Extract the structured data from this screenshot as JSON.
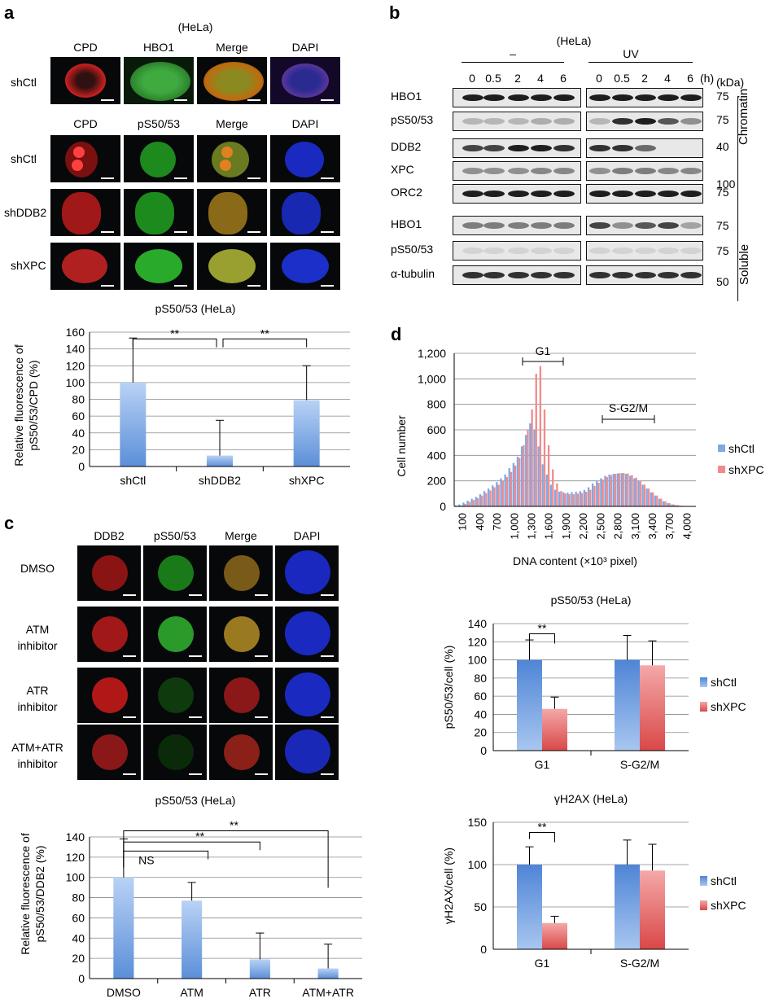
{
  "panel_a": {
    "letter": "a",
    "cell_line": "(HeLa)",
    "top_headers": [
      "CPD",
      "HBO1",
      "Merge",
      "DAPI"
    ],
    "top_rows": [
      "shCtl"
    ],
    "mid_headers": [
      "CPD",
      "pS50/53",
      "Merge",
      "DAPI"
    ],
    "mid_rows": [
      "shCtl",
      "shDDB2",
      "shXPC"
    ]
  },
  "panel_b": {
    "letter": "b",
    "cell_line": "(HeLa)",
    "cond_minus": "–",
    "cond_uv": "UV",
    "time_unit": "(h)",
    "kda_label": "(kDa)",
    "time_points": [
      "0",
      "0.5",
      "2",
      "4",
      "6"
    ],
    "chromatin_rows": [
      "HBO1",
      "pS50/53",
      "DDB2",
      "XPC",
      "ORC2"
    ],
    "soluble_rows": [
      "HBO1",
      "pS50/53",
      "α-tubulin"
    ],
    "chromatin_kda": [
      "75",
      "75",
      "40",
      "100",
      "75"
    ],
    "soluble_kda": [
      "75",
      "75",
      "50"
    ],
    "chromatin_label": "Chromatin",
    "soluble_label": "Soluble"
  },
  "panel_c": {
    "letter": "c",
    "headers": [
      "DDB2",
      "pS50/53",
      "Merge",
      "DAPI"
    ],
    "rows": [
      "DMSO",
      "ATM\ninhibitor",
      "ATR\ninhibitor",
      "ATM+ATR\ninhibitor"
    ]
  },
  "panel_d": {
    "letter": "d"
  },
  "chart_data": [
    {
      "id": "a-bar",
      "type": "bar",
      "title": "pS50/53 (HeLa)",
      "ylabel_line1": "Relative fluorescence of",
      "ylabel_line2": "pS50/53/CPD (%)",
      "categories": [
        "shCtl",
        "shDDB2",
        "shXPC"
      ],
      "values": [
        100,
        13,
        79
      ],
      "errors": [
        53,
        42,
        41
      ],
      "ylim": [
        0,
        160
      ],
      "yticks": [
        0,
        20,
        40,
        60,
        80,
        100,
        120,
        140,
        160
      ],
      "significance": [
        {
          "from": 0,
          "to": 1,
          "label": "**"
        },
        {
          "from": 1,
          "to": 2,
          "label": "**"
        }
      ],
      "colors": {
        "bar_top": "#b9d2f5",
        "bar_bottom": "#5b8fd8"
      }
    },
    {
      "id": "c-bar",
      "type": "bar",
      "title": "pS50/53 (HeLa)",
      "ylabel_line1": "Relative fluorescence of",
      "ylabel_line2": "pS50/53/DDB2 (%)",
      "categories": [
        "DMSO",
        "ATM",
        "ATR",
        "ATM+ATR"
      ],
      "values": [
        100,
        77,
        19,
        10
      ],
      "errors": [
        38,
        18,
        26,
        24
      ],
      "ylim": [
        0,
        140
      ],
      "yticks": [
        0,
        20,
        40,
        60,
        80,
        100,
        120,
        140
      ],
      "significance": [
        {
          "from": 0,
          "to": 1,
          "label": "NS"
        },
        {
          "from": 0,
          "to": 2,
          "label": "**"
        },
        {
          "from": 0,
          "to": 3,
          "label": "**"
        }
      ],
      "colors": {
        "bar_top": "#b9d2f5",
        "bar_bottom": "#5b8fd8"
      }
    },
    {
      "id": "d-histogram",
      "type": "bar",
      "xlabel": "DNA content (×10³ pixel)",
      "ylabel": "Cell number",
      "ylim": [
        0,
        1200
      ],
      "yticks": [
        0,
        200,
        400,
        600,
        800,
        1000,
        1200
      ],
      "ytick_labels": [
        "0",
        "200",
        "400",
        "600",
        "800",
        "1,000",
        "1,200"
      ],
      "xtick_labels": [
        "100",
        "400",
        "700",
        "1,000",
        "1,300",
        "1,600",
        "1,900",
        "2,200",
        "2,500",
        "2,800",
        "3,100",
        "3,400",
        "3,700",
        "4,000"
      ],
      "bracket_g1": "G1",
      "bracket_sg2m": "S-G2/M",
      "series": [
        {
          "name": "shCtl",
          "color": "#7fa9e6",
          "values": [
            10,
            15,
            30,
            45,
            60,
            75,
            95,
            120,
            140,
            165,
            190,
            220,
            250,
            300,
            340,
            390,
            470,
            560,
            650,
            600,
            470,
            330,
            250,
            170,
            130,
            115,
            110,
            108,
            112,
            115,
            120,
            130,
            150,
            180,
            200,
            220,
            240,
            250,
            255,
            258,
            260,
            255,
            240,
            220,
            200,
            170,
            140,
            110,
            85,
            60,
            40,
            25,
            15,
            10,
            5,
            3,
            2,
            2
          ]
        },
        {
          "name": "shXPC",
          "color": "#f08b8b",
          "values": [
            5,
            8,
            20,
            35,
            50,
            65,
            85,
            105,
            125,
            150,
            170,
            200,
            230,
            270,
            320,
            380,
            480,
            600,
            760,
            1040,
            1100,
            760,
            480,
            290,
            180,
            120,
            100,
            95,
            95,
            100,
            105,
            115,
            130,
            160,
            185,
            210,
            230,
            245,
            255,
            260,
            262,
            258,
            245,
            225,
            200,
            170,
            140,
            110,
            85,
            60,
            40,
            25,
            15,
            10,
            5,
            3,
            2,
            2
          ]
        }
      ]
    },
    {
      "id": "d-ps5053",
      "type": "bar",
      "title": "pS50/53 (HeLa)",
      "ylabel": "pS50/53/cell (%)",
      "categories": [
        "G1",
        "S-G2/M"
      ],
      "ylim": [
        0,
        140
      ],
      "yticks": [
        0,
        20,
        40,
        60,
        80,
        100,
        120,
        140
      ],
      "series": [
        {
          "name": "shCtl",
          "values": [
            100,
            100
          ],
          "errors": [
            22,
            27
          ],
          "color": "#5b8fd8"
        },
        {
          "name": "shXPC",
          "values": [
            46,
            94
          ],
          "errors": [
            13,
            27
          ],
          "color": "#e06060"
        }
      ],
      "significance": [
        {
          "group": 0,
          "label": "**"
        }
      ]
    },
    {
      "id": "d-h2ax",
      "type": "bar",
      "title": "γH2AX (HeLa)",
      "ylabel": "γH2AX/cell (%)",
      "categories": [
        "G1",
        "S-G2/M"
      ],
      "ylim": [
        0,
        150
      ],
      "yticks": [
        0,
        50,
        100,
        150
      ],
      "series": [
        {
          "name": "shCtl",
          "values": [
            100,
            100
          ],
          "errors": [
            21,
            29
          ],
          "color": "#5b8fd8"
        },
        {
          "name": "shXPC",
          "values": [
            31,
            93
          ],
          "errors": [
            8,
            31
          ],
          "color": "#e06060"
        }
      ],
      "significance": [
        {
          "group": 0,
          "label": "**"
        }
      ]
    }
  ]
}
